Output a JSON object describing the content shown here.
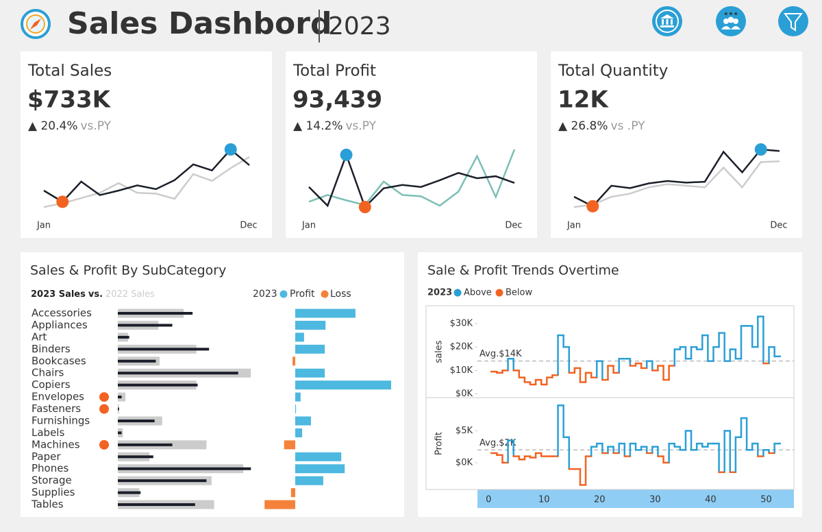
{
  "header": {
    "title": "Sales Dashbord",
    "year": "2023"
  },
  "highlight": {
    "max_color": "#2a9fd6",
    "min_color": "#f26322"
  },
  "kpis": [
    {
      "title": "Total Sales",
      "value": "$733K",
      "change": "▲ 20.4%",
      "compare": "vs.PY",
      "start_label": "Jan",
      "end_label": "Dec",
      "current_color": "#1b1f2a",
      "previous_color": "#cccccc",
      "current": [
        45,
        30,
        57,
        39,
        45,
        52,
        47,
        59,
        80,
        72,
        100,
        79
      ],
      "previous": [
        23,
        28,
        35,
        42,
        55,
        42,
        41,
        34,
        67,
        58,
        75,
        90
      ]
    },
    {
      "title": "Total Profit",
      "value": "93,439",
      "change": "▲ 14.2%",
      "compare": "vs.PY",
      "start_label": "Jan",
      "end_label": "Dec",
      "current_color": "#1b1f2a",
      "previous_color": "#7bbfb5",
      "current": [
        42,
        14,
        90,
        12,
        40,
        45,
        42,
        52,
        63,
        55,
        58,
        48
      ],
      "previous": [
        20,
        30,
        22,
        15,
        50,
        30,
        28,
        14,
        35,
        88,
        27,
        98
      ]
    },
    {
      "title": "Total Quantity",
      "value": "12K",
      "change": "▲ 26.8%",
      "compare": "vs .PY",
      "start_label": "Jan",
      "end_label": "Dec",
      "current_color": "#1b1f2a",
      "previous_color": "#cccccc",
      "current": [
        38,
        26,
        52,
        49,
        55,
        58,
        56,
        57,
        95,
        69,
        98,
        96
      ],
      "previous": [
        25,
        28,
        38,
        42,
        50,
        54,
        52,
        50,
        75,
        50,
        82,
        83
      ]
    }
  ],
  "chart_data": [
    {
      "type": "bar",
      "title": "Sales & Profit By SubCategory",
      "legend_joiner": "vs.",
      "profit_legend": {
        "title": "2023",
        "positive": "Profit",
        "negative": "Loss",
        "positive_color": "#4db8e0",
        "negative_color": "#f5823a"
      },
      "categories": [
        "Accessories",
        "Appliances",
        "Art",
        "Binders",
        "Bookcases",
        "Chairs",
        "Copiers",
        "Envelopes",
        "Fasteners",
        "Furnishings",
        "Labels",
        "Machines",
        "Paper",
        "Phones",
        "Storage",
        "Supplies",
        "Tables"
      ],
      "flagged": [
        false,
        false,
        false,
        false,
        false,
        false,
        false,
        true,
        true,
        false,
        false,
        true,
        false,
        false,
        false,
        false,
        false
      ],
      "flag_color": "#f26322",
      "series": [
        {
          "name": "2023 Sales",
          "color": "#1b1f2a",
          "values": [
            59,
            43,
            9,
            72,
            30,
            95,
            63,
            3,
            1,
            29,
            3,
            43,
            28,
            105,
            70,
            18,
            61
          ]
        },
        {
          "name": "2022 Sales",
          "color": "#cccccc",
          "values": [
            52,
            32,
            8,
            62,
            33,
            105,
            62,
            6,
            1,
            35,
            4,
            70,
            25,
            99,
            74,
            17,
            76
          ]
        },
        {
          "name": "Profit",
          "values": [
            15.7,
            7.9,
            2.3,
            7.7,
            -0.7,
            7.7,
            25,
            1.4,
            0.2,
            4.1,
            1.8,
            -2.9,
            12,
            12.9,
            7.3,
            -1.1,
            -8
          ]
        }
      ]
    },
    {
      "type": "step",
      "title": "Sale & Profit Trends Overtime",
      "legend": {
        "title": "2023",
        "above": "Above",
        "below": "Below"
      },
      "above_color": "#2a9fd6",
      "below_color": "#f26322",
      "x": [
        1,
        2,
        3,
        4,
        5,
        6,
        7,
        8,
        9,
        10,
        11,
        12,
        13,
        14,
        15,
        16,
        17,
        18,
        19,
        20,
        21,
        22,
        23,
        24,
        25,
        26,
        27,
        28,
        29,
        30,
        31,
        32,
        33,
        34,
        35,
        36,
        37,
        38,
        39,
        40,
        41,
        42,
        43,
        44,
        45,
        46,
        47,
        48,
        49,
        50,
        51,
        52
      ],
      "xlim": [
        -2,
        55
      ],
      "xticks": [
        0,
        10,
        20,
        30,
        40,
        50
      ],
      "panels": [
        {
          "label": "sales",
          "ylim": [
            -1000,
            37000
          ],
          "yticks": [
            {
              "value": 0,
              "label": "$0K"
            },
            {
              "value": 10000,
              "label": "$10K"
            },
            {
              "value": 20000,
              "label": "$20K"
            },
            {
              "value": 30000,
              "label": "$30K"
            }
          ],
          "avg": {
            "value": 14000,
            "label": "Avg.$14K"
          },
          "values": [
            9500,
            9000,
            10000,
            15000,
            10000,
            7000,
            5000,
            4000,
            6000,
            4000,
            7000,
            8000,
            25000,
            20000,
            9000,
            11000,
            5000,
            9000,
            7000,
            14000,
            6000,
            12000,
            9000,
            15000,
            15000,
            12000,
            13000,
            11000,
            14000,
            10000,
            12000,
            6000,
            12000,
            19000,
            20000,
            15000,
            20000,
            19000,
            25000,
            14000,
            20000,
            26000,
            14000,
            19000,
            15000,
            29000,
            29000,
            20000,
            33000,
            13000,
            20000,
            16000
          ]
        },
        {
          "label": "Profit",
          "ylim": [
            -4000,
            10000
          ],
          "yticks": [
            {
              "value": 0,
              "label": "$0K"
            },
            {
              "value": 5000,
              "label": "$5K"
            }
          ],
          "avg": {
            "value": 2000,
            "label": "Avg.$2K"
          },
          "values": [
            1500,
            1200,
            0,
            3500,
            1000,
            500,
            1000,
            800,
            1500,
            1000,
            1000,
            1000,
            9000,
            4000,
            -1000,
            -1000,
            -3500,
            1000,
            2500,
            3000,
            1500,
            2500,
            1500,
            3000,
            1000,
            3000,
            2000,
            2500,
            1500,
            2500,
            1000,
            0,
            3000,
            2500,
            2000,
            5000,
            2000,
            3000,
            2500,
            3000,
            3000,
            -1500,
            5000,
            -1500,
            4000,
            7000,
            2000,
            3000,
            1000,
            2000,
            1500,
            3000
          ]
        }
      ]
    }
  ]
}
